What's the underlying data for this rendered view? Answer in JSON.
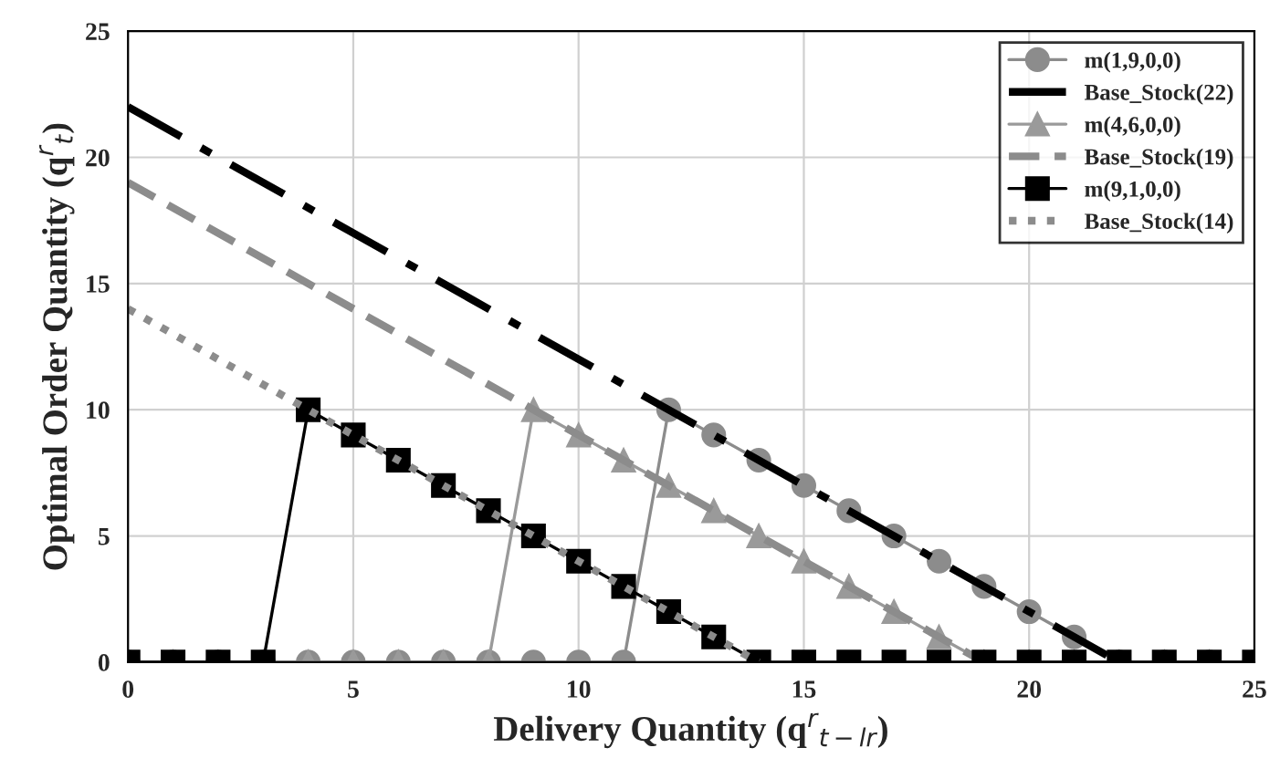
{
  "chart_data": {
    "type": "line",
    "xlabel": "Delivery Quantity (q$^{r}$$_{t−lr}$)",
    "ylabel": "Optimal Order Quantity (q$^{r}$$_{t}$)",
    "x": [
      0,
      1,
      2,
      3,
      4,
      5,
      6,
      7,
      8,
      9,
      10,
      11,
      12,
      13,
      14,
      15,
      16,
      17,
      18,
      19,
      20,
      21,
      22,
      23,
      24,
      25
    ],
    "xlim": [
      0,
      25
    ],
    "ylim": [
      0,
      25
    ],
    "xticks": [
      0,
      5,
      10,
      15,
      20,
      25
    ],
    "yticks": [
      0,
      5,
      10,
      15,
      20,
      25
    ],
    "grid": true,
    "legend": "top right",
    "series": [
      {
        "name": "m(1,9,0,0)",
        "color": "#8c8c8c",
        "marker": "circle",
        "line_style": "solid",
        "values": [
          0,
          0,
          0,
          0,
          0,
          0,
          0,
          0,
          0,
          0,
          0,
          0,
          10,
          9,
          8,
          7,
          6,
          5,
          4,
          3,
          2,
          1,
          0,
          0,
          0,
          0
        ]
      },
      {
        "name": "Base_Stock(22)",
        "color": "#000000",
        "line_style": "dashdot",
        "x": [
          0,
          22
        ],
        "values": [
          22,
          0
        ]
      },
      {
        "name": "m(4,6,0,0)",
        "color": "#9a9a9a",
        "marker": "triangle",
        "line_style": "solid",
        "values": [
          0,
          0,
          0,
          0,
          0,
          0,
          0,
          0,
          0,
          10,
          9,
          8,
          7,
          6,
          5,
          4,
          3,
          2,
          1,
          0,
          0,
          0,
          0,
          0,
          0,
          0
        ]
      },
      {
        "name": "Base_Stock(19)",
        "color": "#8c8c8c",
        "line_style": "dashed",
        "x": [
          0,
          19
        ],
        "values": [
          19,
          0
        ]
      },
      {
        "name": "m(9,1,0,0)",
        "color": "#000000",
        "marker": "square",
        "line_style": "solid",
        "values": [
          0,
          0,
          0,
          0,
          10,
          9,
          8,
          7,
          6,
          5,
          4,
          3,
          2,
          1,
          0,
          0,
          0,
          0,
          0,
          0,
          0,
          0,
          0,
          0,
          0,
          0
        ]
      },
      {
        "name": "Base_Stock(14)",
        "color": "#8c8c8c",
        "line_style": "dotted",
        "x": [
          0,
          14
        ],
        "values": [
          14,
          0
        ]
      }
    ]
  }
}
